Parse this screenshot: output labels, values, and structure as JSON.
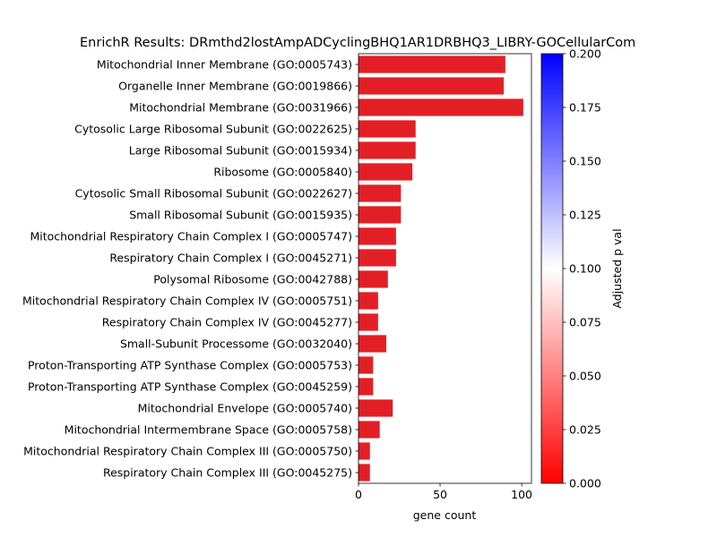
{
  "chart_data": {
    "type": "bar",
    "orientation": "horizontal",
    "title": "EnrichR Results: DRmthd2lostAmpADCyclingBHQ1AR1DRBHQ3_LIBRY-GOCellularCom",
    "xlabel": "gene count",
    "ylabel": "",
    "xlim": [
      0,
      106
    ],
    "x_ticks": [
      0,
      50,
      100
    ],
    "categories": [
      "Mitochondrial Inner Membrane (GO:0005743)",
      "Organelle Inner Membrane (GO:0019866)",
      "Mitochondrial Membrane (GO:0031966)",
      "Cytosolic Large Ribosomal Subunit (GO:0022625)",
      "Large Ribosomal Subunit (GO:0015934)",
      "Ribosome (GO:0005840)",
      "Cytosolic Small Ribosomal Subunit (GO:0022627)",
      "Small Ribosomal Subunit (GO:0015935)",
      "Mitochondrial Respiratory Chain Complex I (GO:0005747)",
      "Respiratory Chain Complex I (GO:0045271)",
      "Polysomal Ribosome (GO:0042788)",
      "Mitochondrial Respiratory Chain Complex IV (GO:0005751)",
      "Respiratory Chain Complex IV (GO:0045277)",
      "Small-Subunit Processome (GO:0032040)",
      "Proton-Transporting ATP Synthase Complex (GO:0005753)",
      "Proton-Transporting ATP Synthase Complex (GO:0045259)",
      "Mitochondrial Envelope (GO:0005740)",
      "Mitochondrial Intermembrane Space (GO:0005758)",
      "Mitochondrial Respiratory Chain Complex III (GO:0005750)",
      "Respiratory Chain Complex III (GO:0045275)"
    ],
    "values": [
      90,
      89,
      101,
      35,
      35,
      33,
      26,
      26,
      23,
      23,
      18,
      12,
      12,
      17,
      9,
      9,
      21,
      13,
      7,
      7
    ],
    "bar_color": "#e31f26",
    "colorbar": {
      "label": "Adjusted p val",
      "range": [
        0.0,
        0.2
      ],
      "ticks": [
        "0.000",
        "0.025",
        "0.050",
        "0.075",
        "0.100",
        "0.125",
        "0.150",
        "0.175",
        "0.200"
      ],
      "colors": [
        "#ff0000",
        "#ffffff",
        "#0000ff"
      ]
    }
  }
}
